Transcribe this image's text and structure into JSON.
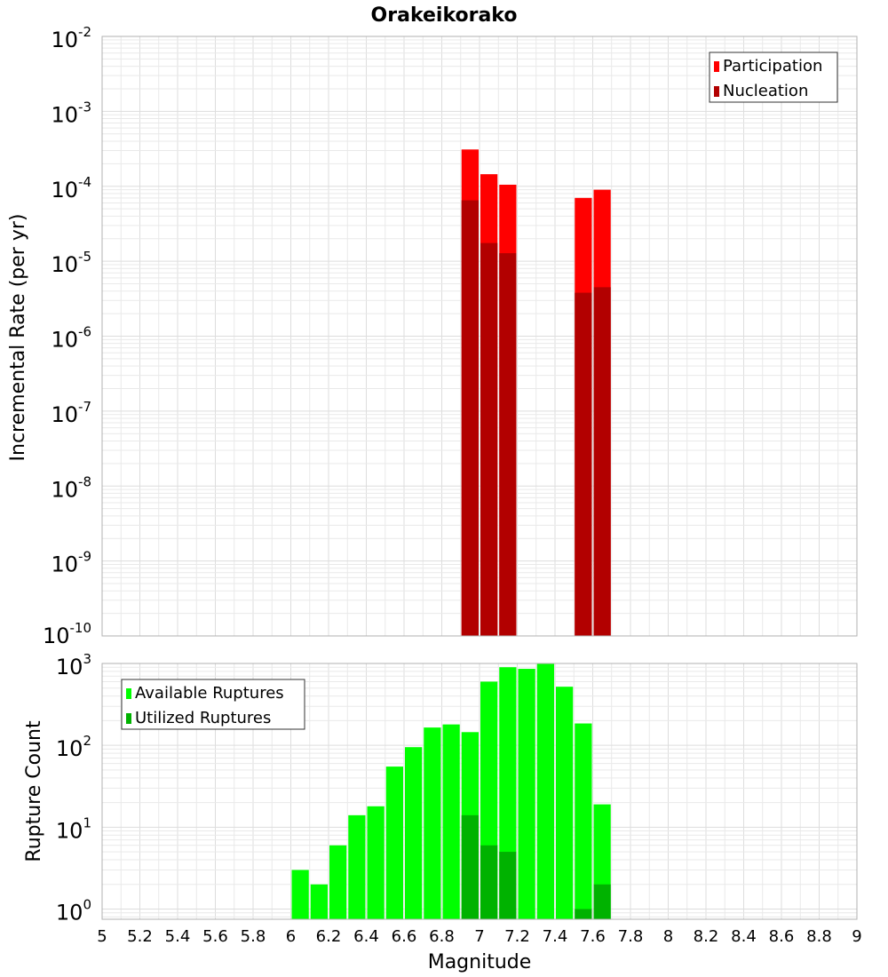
{
  "chart_data": [
    {
      "type": "bar",
      "title": "Orakeikorako",
      "xlabel": "",
      "ylabel": "Incremental Rate (per yr)",
      "yscale": "log",
      "ylim": [
        1e-10,
        0.01
      ],
      "xlim": [
        5,
        9
      ],
      "grid": true,
      "legend_position": "top-right",
      "y_ticks": [
        {
          "base": "10",
          "exp": "-10"
        },
        {
          "base": "10",
          "exp": "-9"
        },
        {
          "base": "10",
          "exp": "-8"
        },
        {
          "base": "10",
          "exp": "-7"
        },
        {
          "base": "10",
          "exp": "-6"
        },
        {
          "base": "10",
          "exp": "-5"
        },
        {
          "base": "10",
          "exp": "-4"
        },
        {
          "base": "10",
          "exp": "-3"
        },
        {
          "base": "10",
          "exp": "-2"
        }
      ],
      "bin_width": 0.1,
      "series": [
        {
          "name": "Participation",
          "color": "#ff0000",
          "points": [
            {
              "x": 6.95,
              "y": 0.00031
            },
            {
              "x": 7.05,
              "y": 0.000145
            },
            {
              "x": 7.15,
              "y": 0.000105
            },
            {
              "x": 7.55,
              "y": 7e-05
            },
            {
              "x": 7.65,
              "y": 9e-05
            }
          ]
        },
        {
          "name": "Nucleation",
          "color": "#b20000",
          "points": [
            {
              "x": 6.95,
              "y": 6.5e-05
            },
            {
              "x": 7.05,
              "y": 1.75e-05
            },
            {
              "x": 7.15,
              "y": 1.28e-05
            },
            {
              "x": 7.55,
              "y": 3.8e-06
            },
            {
              "x": 7.65,
              "y": 4.5e-06
            }
          ]
        }
      ]
    },
    {
      "type": "bar",
      "title": "",
      "xlabel": "Magnitude",
      "ylabel": "Rupture Count",
      "yscale": "log",
      "ylim": [
        0.75,
        1000
      ],
      "xlim": [
        5,
        9
      ],
      "grid": true,
      "legend_position": "top-left",
      "x_ticks": [
        "5",
        "5.2",
        "5.4",
        "5.6",
        "5.8",
        "6",
        "6.2",
        "6.4",
        "6.6",
        "6.8",
        "7",
        "7.2",
        "7.4",
        "7.6",
        "7.8",
        "8",
        "8.2",
        "8.4",
        "8.6",
        "8.8",
        "9"
      ],
      "y_ticks": [
        {
          "base": "10",
          "exp": "0"
        },
        {
          "base": "10",
          "exp": "1"
        },
        {
          "base": "10",
          "exp": "2"
        },
        {
          "base": "10",
          "exp": "3"
        }
      ],
      "bin_width": 0.1,
      "series": [
        {
          "name": "Available Ruptures",
          "color": "#00ff00",
          "points": [
            {
              "x": 6.05,
              "y": 3
            },
            {
              "x": 6.15,
              "y": 2
            },
            {
              "x": 6.25,
              "y": 6
            },
            {
              "x": 6.35,
              "y": 14
            },
            {
              "x": 6.45,
              "y": 18
            },
            {
              "x": 6.55,
              "y": 55
            },
            {
              "x": 6.65,
              "y": 95
            },
            {
              "x": 6.75,
              "y": 165
            },
            {
              "x": 6.85,
              "y": 180
            },
            {
              "x": 6.95,
              "y": 145
            },
            {
              "x": 7.05,
              "y": 600
            },
            {
              "x": 7.15,
              "y": 900
            },
            {
              "x": 7.25,
              "y": 860
            },
            {
              "x": 7.35,
              "y": 1000
            },
            {
              "x": 7.45,
              "y": 520
            },
            {
              "x": 7.55,
              "y": 185
            },
            {
              "x": 7.65,
              "y": 19
            }
          ]
        },
        {
          "name": "Utilized Ruptures",
          "color": "#00b200",
          "points": [
            {
              "x": 6.95,
              "y": 14
            },
            {
              "x": 7.05,
              "y": 6
            },
            {
              "x": 7.15,
              "y": 5
            },
            {
              "x": 7.55,
              "y": 1
            },
            {
              "x": 7.65,
              "y": 2
            }
          ]
        }
      ]
    }
  ]
}
